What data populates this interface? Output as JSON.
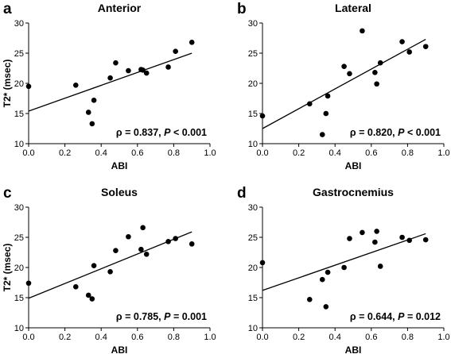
{
  "chart_data": [
    {
      "type": "scatter",
      "letter": "a",
      "title": "Anterior",
      "xlabel": "ABI",
      "ylabel": "T2* (msec)",
      "xlim": [
        0.0,
        1.0
      ],
      "ylim": [
        10,
        30
      ],
      "xticks": [
        "0.0",
        "0.2",
        "0.4",
        "0.6",
        "0.8",
        "1.0"
      ],
      "yticks": [
        "10",
        "15",
        "20",
        "25",
        "30"
      ],
      "points": [
        {
          "x": 0.0,
          "y": 19.5
        },
        {
          "x": 0.26,
          "y": 19.7
        },
        {
          "x": 0.33,
          "y": 15.2
        },
        {
          "x": 0.35,
          "y": 13.3
        },
        {
          "x": 0.36,
          "y": 17.2
        },
        {
          "x": 0.45,
          "y": 20.9
        },
        {
          "x": 0.48,
          "y": 23.4
        },
        {
          "x": 0.55,
          "y": 22.1
        },
        {
          "x": 0.62,
          "y": 22.3
        },
        {
          "x": 0.63,
          "y": 22.2
        },
        {
          "x": 0.65,
          "y": 21.7
        },
        {
          "x": 0.77,
          "y": 22.7
        },
        {
          "x": 0.81,
          "y": 25.3
        },
        {
          "x": 0.9,
          "y": 26.8
        }
      ],
      "fit_line": {
        "x": [
          0.0,
          0.9
        ],
        "y": [
          15.4,
          25.0
        ]
      },
      "stat_rho": "ρ = 0.837,",
      "stat_p_label": "P",
      "stat_p_value": "< 0.001"
    },
    {
      "type": "scatter",
      "letter": "b",
      "title": "Lateral",
      "xlabel": "ABI",
      "ylabel": "",
      "xlim": [
        0.0,
        1.0
      ],
      "ylim": [
        10,
        30
      ],
      "xticks": [
        "0.0",
        "0.2",
        "0.4",
        "0.6",
        "0.8",
        "1.0"
      ],
      "yticks": [
        "10",
        "15",
        "20",
        "25",
        "30"
      ],
      "points": [
        {
          "x": 0.0,
          "y": 14.6
        },
        {
          "x": 0.26,
          "y": 16.6
        },
        {
          "x": 0.33,
          "y": 11.5
        },
        {
          "x": 0.35,
          "y": 15.0
        },
        {
          "x": 0.36,
          "y": 17.9
        },
        {
          "x": 0.45,
          "y": 22.8
        },
        {
          "x": 0.48,
          "y": 21.6
        },
        {
          "x": 0.55,
          "y": 28.7
        },
        {
          "x": 0.62,
          "y": 21.8
        },
        {
          "x": 0.63,
          "y": 19.9
        },
        {
          "x": 0.65,
          "y": 23.4
        },
        {
          "x": 0.77,
          "y": 26.9
        },
        {
          "x": 0.81,
          "y": 25.2
        },
        {
          "x": 0.9,
          "y": 26.1
        }
      ],
      "fit_line": {
        "x": [
          0.0,
          0.9
        ],
        "y": [
          12.5,
          27.3
        ]
      },
      "stat_rho": "ρ = 0.820,",
      "stat_p_label": "P",
      "stat_p_value": "< 0.001"
    },
    {
      "type": "scatter",
      "letter": "c",
      "title": "Soleus",
      "xlabel": "ABI",
      "ylabel": "T2* (msec)",
      "xlim": [
        0.0,
        1.0
      ],
      "ylim": [
        10,
        30
      ],
      "xticks": [
        "0.0",
        "0.2",
        "0.4",
        "0.6",
        "0.8",
        "1.0"
      ],
      "yticks": [
        "10",
        "15",
        "20",
        "25",
        "30"
      ],
      "points": [
        {
          "x": 0.0,
          "y": 17.4
        },
        {
          "x": 0.26,
          "y": 16.8
        },
        {
          "x": 0.33,
          "y": 15.4
        },
        {
          "x": 0.35,
          "y": 14.8
        },
        {
          "x": 0.36,
          "y": 20.3
        },
        {
          "x": 0.45,
          "y": 19.3
        },
        {
          "x": 0.48,
          "y": 22.8
        },
        {
          "x": 0.55,
          "y": 25.1
        },
        {
          "x": 0.62,
          "y": 23.0
        },
        {
          "x": 0.63,
          "y": 26.6
        },
        {
          "x": 0.65,
          "y": 22.2
        },
        {
          "x": 0.77,
          "y": 24.3
        },
        {
          "x": 0.81,
          "y": 24.8
        },
        {
          "x": 0.9,
          "y": 23.9
        }
      ],
      "fit_line": {
        "x": [
          0.0,
          0.9
        ],
        "y": [
          14.9,
          25.9
        ]
      },
      "stat_rho": "ρ = 0.785,",
      "stat_p_label": "P",
      "stat_p_value": "= 0.001"
    },
    {
      "type": "scatter",
      "letter": "d",
      "title": "Gastrocnemius",
      "xlabel": "ABI",
      "ylabel": "",
      "xlim": [
        0.0,
        1.0
      ],
      "ylim": [
        10,
        30
      ],
      "xticks": [
        "0.0",
        "0.2",
        "0.4",
        "0.6",
        "0.8",
        "1.0"
      ],
      "yticks": [
        "10",
        "15",
        "20",
        "25",
        "30"
      ],
      "points": [
        {
          "x": 0.0,
          "y": 20.8
        },
        {
          "x": 0.26,
          "y": 14.7
        },
        {
          "x": 0.33,
          "y": 18.0
        },
        {
          "x": 0.35,
          "y": 13.5
        },
        {
          "x": 0.36,
          "y": 19.2
        },
        {
          "x": 0.45,
          "y": 20.0
        },
        {
          "x": 0.48,
          "y": 24.8
        },
        {
          "x": 0.55,
          "y": 25.8
        },
        {
          "x": 0.62,
          "y": 24.2
        },
        {
          "x": 0.63,
          "y": 26.0
        },
        {
          "x": 0.65,
          "y": 20.2
        },
        {
          "x": 0.77,
          "y": 25.0
        },
        {
          "x": 0.81,
          "y": 24.5
        },
        {
          "x": 0.9,
          "y": 24.6
        }
      ],
      "fit_line": {
        "x": [
          0.0,
          0.9
        ],
        "y": [
          16.2,
          25.6
        ]
      },
      "stat_rho": "ρ = 0.644,",
      "stat_p_label": "P",
      "stat_p_value": "= 0.012"
    }
  ]
}
